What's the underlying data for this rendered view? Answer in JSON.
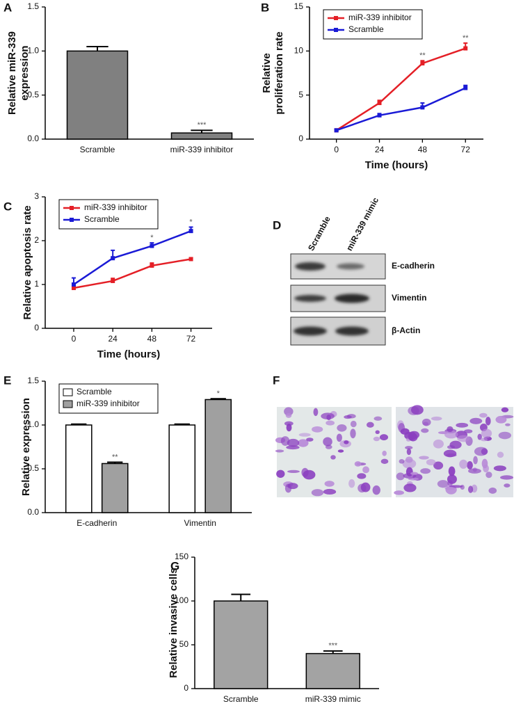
{
  "chart_data": [
    {
      "panel": "A",
      "type": "bar",
      "ylabel": [
        "Relative miR-339",
        "expression"
      ],
      "categories": [
        "Scramble",
        "miR-339 inhibitor"
      ],
      "values": [
        1.0,
        0.07
      ],
      "errors": [
        0.05,
        0.03
      ],
      "annotations": [
        null,
        "***"
      ],
      "color": "#808080",
      "ylim": [
        0,
        1.5
      ],
      "yticks": [
        {
          "value": 0,
          "label": "0.0"
        },
        0.5,
        {
          "value": 1,
          "label": "1.0"
        },
        1.5
      ]
    },
    {
      "panel": "B",
      "type": "line",
      "xlabel": "Time (hours)",
      "ylabel": [
        "Relative",
        "proliferation rate"
      ],
      "x": [
        0,
        24,
        48,
        72
      ],
      "xlim": [
        -15,
        82
      ],
      "xticks": [
        0,
        24,
        48,
        72
      ],
      "ylim": [
        0,
        15
      ],
      "yticks": [
        0,
        5,
        10,
        15
      ],
      "legend": "upper left",
      "series": [
        {
          "name": "miR-339 inhibitor",
          "color": "#e41f26",
          "values": [
            1.0,
            4.1,
            8.6,
            10.3
          ],
          "errors": [
            0.1,
            0.3,
            0.3,
            0.6
          ],
          "annotations": [
            null,
            null,
            "**",
            "**"
          ]
        },
        {
          "name": "Scramble",
          "color": "#1a1ad6",
          "values": [
            1.0,
            2.7,
            3.6,
            5.8
          ],
          "errors": [
            0.1,
            0.2,
            0.5,
            0.3
          ]
        }
      ]
    },
    {
      "panel": "C",
      "type": "line",
      "xlabel": "Time (hours)",
      "ylabel": "Relative apoptosis rate",
      "x": [
        0,
        24,
        48,
        72
      ],
      "xlim": [
        -17.5,
        85
      ],
      "xticks": [
        0,
        24,
        48,
        72
      ],
      "ylim": [
        0,
        3
      ],
      "yticks": [
        0,
        1,
        2,
        3
      ],
      "legend": "upper left",
      "series": [
        {
          "name": "miR-339 inhibitor",
          "color": "#e41f26",
          "values": [
            0.92,
            1.08,
            1.43,
            1.58
          ],
          "errors": [
            0.05,
            0.06,
            0.06,
            0.03
          ]
        },
        {
          "name": "Scramble",
          "color": "#1a1ad6",
          "values": [
            1.0,
            1.6,
            1.88,
            2.22
          ],
          "errors": [
            0.15,
            0.18,
            0.07,
            0.09
          ],
          "annotations": [
            null,
            null,
            "*",
            "*"
          ]
        }
      ]
    },
    {
      "panel": "E",
      "type": "bar",
      "ylabel": "Relative expression",
      "categories": [
        "E-cadherin",
        "Vimentin"
      ],
      "legend": "upper left",
      "ylim": [
        0,
        1.5
      ],
      "yticks": [
        {
          "value": 0,
          "label": "0.0"
        },
        0.5,
        {
          "value": 1,
          "label": "1.0"
        },
        1.5
      ],
      "series": [
        {
          "name": "Scramble",
          "color": "#ffffff",
          "values": [
            1.0,
            1.0
          ],
          "errors": [
            0.01,
            0.01
          ]
        },
        {
          "name": "miR-339 inhibitor",
          "color": "#a0a0a0",
          "values": [
            0.56,
            1.29
          ],
          "errors": [
            0.015,
            0.01
          ],
          "annotations": [
            "**",
            "*"
          ]
        }
      ]
    },
    {
      "panel": "G",
      "type": "bar",
      "ylabel": "Relative invasive cells",
      "categories": [
        "Scramble",
        "miR-339 mimic"
      ],
      "values": [
        100,
        40
      ],
      "errors": [
        7.5,
        3
      ],
      "annotations": [
        null,
        "***"
      ],
      "color": "#a3a3a3",
      "ylim": [
        0,
        150
      ],
      "yticks": [
        0,
        50,
        100,
        150
      ]
    }
  ],
  "blot": {
    "panel": "D",
    "lanes": [
      "Scramble",
      "miR-339 mimic"
    ],
    "proteins": [
      "E-cadherin",
      "Vimentin",
      "β-Actin"
    ]
  },
  "micrograph": {
    "panel": "F"
  }
}
